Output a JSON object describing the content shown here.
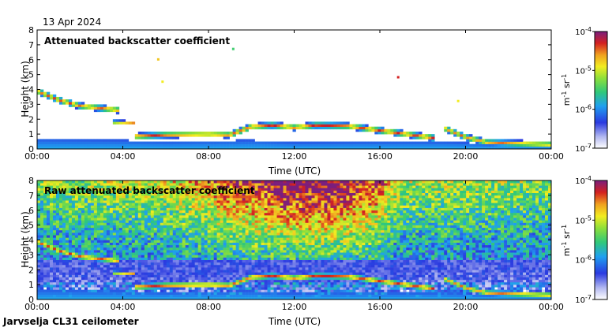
{
  "date_label": "13 Apr 2024",
  "site_label": "Jarvselja CL31 ceilometer",
  "chart_data": [
    {
      "type": "heatmap",
      "title": "Attenuated backscatter coefficient",
      "xlabel": "Time (UTC)",
      "ylabel": "Height (km)",
      "x_ticks": [
        "00:00",
        "04:00",
        "08:00",
        "12:00",
        "16:00",
        "20:00",
        "00:00"
      ],
      "x_range_hours": [
        0,
        24
      ],
      "y_ticks": [
        0,
        1,
        2,
        3,
        4,
        5,
        6,
        7,
        8
      ],
      "ylim": [
        0,
        8
      ],
      "colorbar": {
        "label_base": "m",
        "label_exp1": "-1",
        "label_unit": "sr",
        "label_exp2": "-1",
        "ticks": [
          {
            "base": "10",
            "exp": "-4",
            "value": 0.0001
          },
          {
            "base": "10",
            "exp": "-5",
            "value": 1e-05
          },
          {
            "base": "10",
            "exp": "-6",
            "value": 1e-06
          },
          {
            "base": "10",
            "exp": "-7",
            "value": 1e-07
          }
        ]
      },
      "noise": 0.0,
      "layers": [
        {
          "name": "boundary-layer",
          "points": [
            [
              0,
              0.7
            ],
            [
              4,
              0.6
            ],
            [
              6,
              0.5
            ],
            [
              8,
              0.55
            ],
            [
              10,
              0.6
            ],
            [
              12,
              0.45
            ],
            [
              16,
              0.5
            ],
            [
              19,
              0.5
            ],
            [
              21,
              0.35
            ],
            [
              24,
              0.25
            ]
          ],
          "strength": 0.38,
          "thickness": 0.8
        },
        {
          "name": "residual-layer",
          "points": [
            [
              0,
              3.9
            ],
            [
              1,
              3.3
            ],
            [
              2,
              2.9
            ],
            [
              3.3,
              2.7
            ],
            [
              3.9,
              2.6
            ]
          ],
          "strength": 0.88,
          "thickness": 0.12
        },
        {
          "name": "layer-2km",
          "points": [
            [
              3.6,
              1.8
            ],
            [
              4.5,
              1.75
            ]
          ],
          "strength": 0.82,
          "thickness": 0.08
        },
        {
          "name": "low-cloud",
          "points": [
            [
              4.5,
              0.85
            ],
            [
              6,
              0.95
            ],
            [
              8,
              1.0
            ],
            [
              9,
              0.95
            ],
            [
              10,
              1.5
            ],
            [
              11,
              1.6
            ],
            [
              12,
              1.45
            ],
            [
              13,
              1.6
            ],
            [
              14.5,
              1.55
            ],
            [
              16,
              1.25
            ],
            [
              17.5,
              0.95
            ],
            [
              18.5,
              0.75
            ]
          ],
          "strength": 0.92,
          "thickness": 0.12
        },
        {
          "name": "late-cloud",
          "points": [
            [
              19,
              1.4
            ],
            [
              20,
              0.8
            ],
            [
              21,
              0.45
            ],
            [
              22,
              0.4
            ],
            [
              24,
              0.3
            ]
          ],
          "strength": 0.85,
          "thickness": 0.12
        }
      ],
      "specks": [
        {
          "t": 5.6,
          "h": 6.1,
          "s": 0.75
        },
        {
          "t": 5.8,
          "h": 4.6,
          "s": 0.7
        },
        {
          "t": 16.8,
          "h": 4.9,
          "s": 0.9
        },
        {
          "t": 19.6,
          "h": 3.3,
          "s": 0.7
        },
        {
          "t": 9.1,
          "h": 6.8,
          "s": 0.5
        }
      ],
      "haze_top": []
    },
    {
      "type": "heatmap",
      "title": "Raw attenuated backscatter coefficient",
      "xlabel": "Time (UTC)",
      "ylabel": "Height (km)",
      "x_ticks": [
        "00:00",
        "04:00",
        "08:00",
        "12:00",
        "16:00",
        "20:00",
        "00:00"
      ],
      "x_range_hours": [
        0,
        24
      ],
      "y_ticks": [
        0,
        1,
        2,
        3,
        4,
        5,
        6,
        7,
        8
      ],
      "ylim": [
        0,
        8
      ],
      "colorbar": {
        "label_base": "m",
        "label_exp1": "-1",
        "label_unit": "sr",
        "label_exp2": "-1",
        "ticks": [
          {
            "base": "10",
            "exp": "-4",
            "value": 0.0001
          },
          {
            "base": "10",
            "exp": "-5",
            "value": 1e-05
          },
          {
            "base": "10",
            "exp": "-6",
            "value": 1e-06
          },
          {
            "base": "10",
            "exp": "-7",
            "value": 1e-07
          }
        ]
      },
      "noise": 1.0,
      "layers": [
        {
          "name": "boundary-layer",
          "points": [
            [
              0,
              0.7
            ],
            [
              4,
              0.6
            ],
            [
              6,
              0.5
            ],
            [
              8,
              0.55
            ],
            [
              10,
              0.6
            ],
            [
              12,
              0.45
            ],
            [
              16,
              0.5
            ],
            [
              19,
              0.5
            ],
            [
              21,
              0.35
            ],
            [
              24,
              0.25
            ]
          ],
          "strength": 0.38,
          "thickness": 0.8
        },
        {
          "name": "residual-layer",
          "points": [
            [
              0,
              3.9
            ],
            [
              1,
              3.3
            ],
            [
              2,
              2.9
            ],
            [
              3.3,
              2.7
            ],
            [
              3.9,
              2.6
            ]
          ],
          "strength": 0.9,
          "thickness": 0.12
        },
        {
          "name": "layer-2km",
          "points": [
            [
              3.6,
              1.8
            ],
            [
              4.5,
              1.75
            ]
          ],
          "strength": 0.8,
          "thickness": 0.08
        },
        {
          "name": "low-cloud",
          "points": [
            [
              4.5,
              0.85
            ],
            [
              6,
              0.95
            ],
            [
              8,
              1.0
            ],
            [
              9,
              0.95
            ],
            [
              10,
              1.5
            ],
            [
              11,
              1.6
            ],
            [
              12,
              1.45
            ],
            [
              13,
              1.6
            ],
            [
              14.5,
              1.55
            ],
            [
              16,
              1.25
            ],
            [
              17.5,
              0.95
            ],
            [
              18.5,
              0.75
            ]
          ],
          "strength": 0.92,
          "thickness": 0.12
        },
        {
          "name": "late-cloud",
          "points": [
            [
              19,
              1.4
            ],
            [
              20,
              0.8
            ],
            [
              21,
              0.45
            ],
            [
              22,
              0.4
            ],
            [
              24,
              0.3
            ]
          ],
          "strength": 0.85,
          "thickness": 0.12
        }
      ],
      "specks": [],
      "haze_top": [
        [
          0,
          0.4
        ],
        [
          6,
          0.5
        ],
        [
          9,
          0.7
        ],
        [
          12,
          0.85
        ],
        [
          14,
          0.85
        ],
        [
          16,
          0.7
        ],
        [
          17,
          0.45
        ],
        [
          20,
          0.45
        ],
        [
          24,
          0.4
        ]
      ]
    }
  ]
}
